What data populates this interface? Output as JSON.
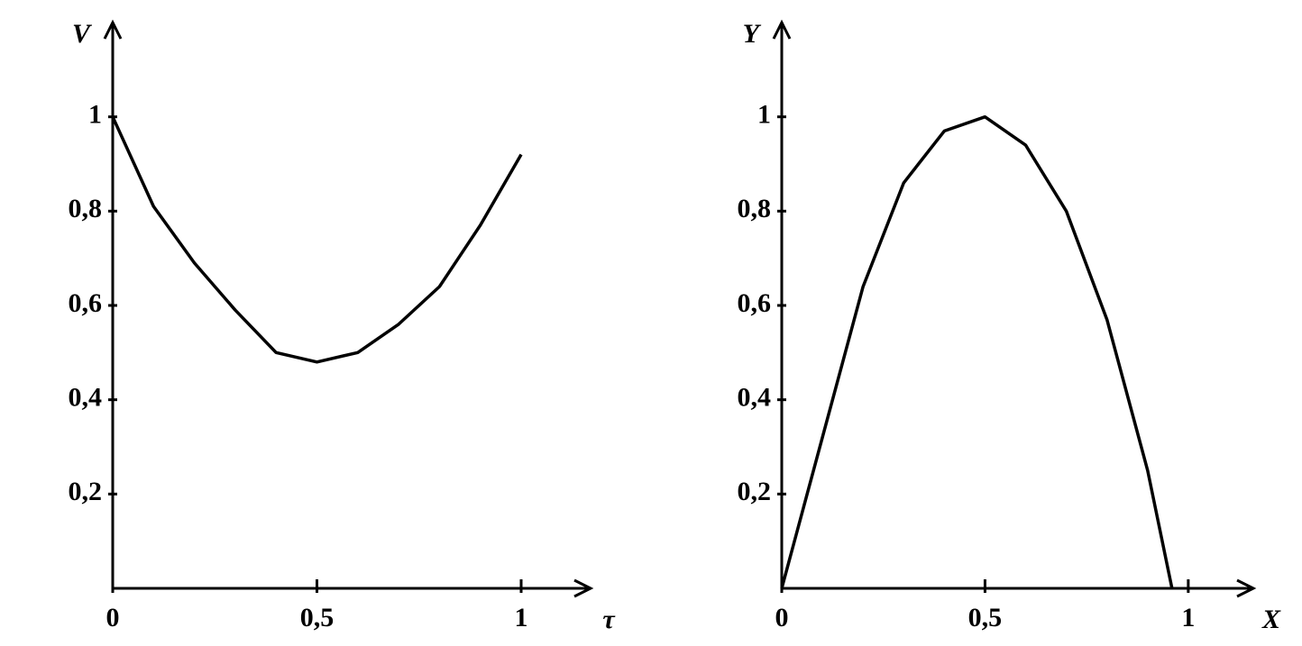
{
  "chart_data": [
    {
      "type": "line",
      "x_label": "τ",
      "y_label": "V",
      "color": "#000000",
      "grid": false,
      "x": [
        0,
        0.1,
        0.2,
        0.3,
        0.4,
        0.5,
        0.6,
        0.7,
        0.8,
        0.9,
        1.0
      ],
      "values": [
        1.0,
        0.81,
        0.69,
        0.59,
        0.5,
        0.48,
        0.5,
        0.56,
        0.64,
        0.77,
        0.92
      ],
      "xlim": [
        0,
        1.17
      ],
      "ylim": [
        0,
        1.2
      ],
      "xticks": [
        0,
        {
          "value": 0.5,
          "label": "0,5"
        },
        1
      ],
      "yticks": [
        {
          "value": 0.2,
          "label": "0,2"
        },
        {
          "value": 0.4,
          "label": "0,4"
        },
        {
          "value": 0.6,
          "label": "0,6"
        },
        {
          "value": 0.8,
          "label": "0,8"
        },
        1
      ]
    },
    {
      "type": "line",
      "x_label": "X",
      "y_label": "Y",
      "color": "#000000",
      "grid": false,
      "x": [
        0,
        0.1,
        0.2,
        0.3,
        0.4,
        0.5,
        0.6,
        0.7,
        0.8,
        0.9,
        0.96
      ],
      "values": [
        0,
        0.32,
        0.64,
        0.86,
        0.97,
        1.0,
        0.94,
        0.8,
        0.57,
        0.25,
        0
      ],
      "xlim": [
        0,
        1.16
      ],
      "ylim": [
        0,
        1.2
      ],
      "xticks": [
        0,
        {
          "value": 0.5,
          "label": "0,5"
        },
        1
      ],
      "yticks": [
        {
          "value": 0.2,
          "label": "0,2"
        },
        {
          "value": 0.4,
          "label": "0,4"
        },
        {
          "value": 0.6,
          "label": "0,6"
        },
        {
          "value": 0.8,
          "label": "0,8"
        },
        1
      ]
    }
  ]
}
